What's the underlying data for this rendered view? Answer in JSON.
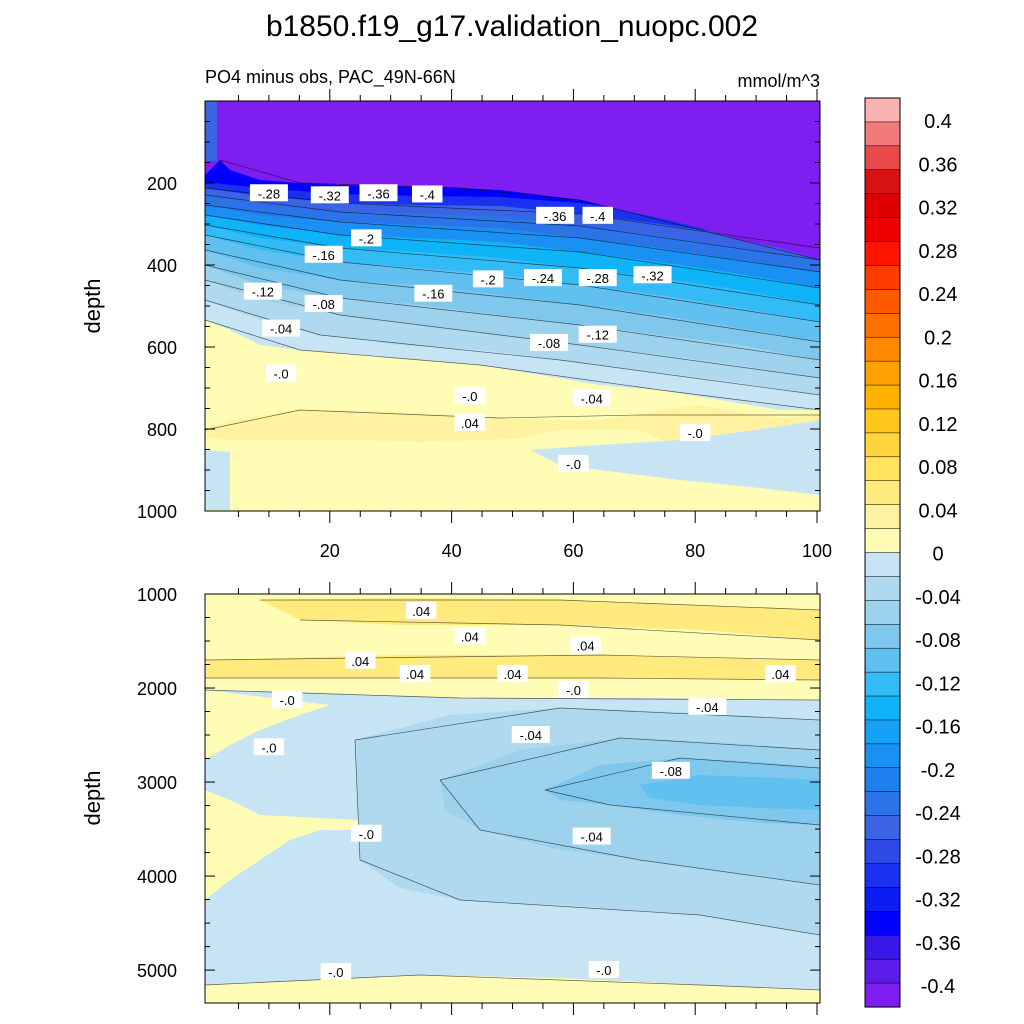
{
  "title": "b1850.f19_g17.validation_nuopc.002",
  "colorbar": {
    "levels": [
      "0.4",
      "0.36",
      "0.32",
      "0.28",
      "0.24",
      "0.2",
      "0.16",
      "0.12",
      "0.08",
      "0.04",
      "0",
      "-0.04",
      "-0.08",
      "-0.12",
      "-0.16",
      "-0.2",
      "-0.24",
      "-0.28",
      "-0.32",
      "-0.36",
      "-0.4"
    ],
    "colors": [
      "#f9b3b3",
      "#f07a7a",
      "#e84a4a",
      "#d81313",
      "#e00000",
      "#ee0000",
      "#ff1400",
      "#ff3c00",
      "#ff5a00",
      "#ff7000",
      "#ff8a00",
      "#ffa000",
      "#ffb200",
      "#ffc61e",
      "#ffd43c",
      "#ffe25e",
      "#ffea7d",
      "#fff2a0",
      "#fffcb6",
      "#c6e4f4",
      "#afd9ef",
      "#9dd2ed",
      "#80c7ee",
      "#60c0f0",
      "#33bbf5",
      "#0fb3f7",
      "#15a2f5",
      "#1a90f2",
      "#1e80ee",
      "#2a74e8",
      "#3a64e4",
      "#2e4ae6",
      "#1a32f0",
      "#0b1cf5",
      "#0000ff",
      "#3a18e6",
      "#5a1ce8",
      "#7f1ef0"
    ]
  },
  "chart_data": [
    {
      "type": "heatmap",
      "title": "PO4 minus obs, PAC_49N-66N",
      "units": "mmol/m^3",
      "ylabel": "depth",
      "xlabel": "",
      "xlim": [
        0,
        100
      ],
      "ylim": [
        1000,
        0
      ],
      "x_ticks": [
        "20",
        "40",
        "60",
        "80",
        "100"
      ],
      "y_ticks": [
        "200",
        "400",
        "600",
        "800",
        "1000"
      ],
      "contour_labels": [
        {
          "text": "-.28",
          "x": 10,
          "y": 225
        },
        {
          "text": "-.32",
          "x": 20,
          "y": 230
        },
        {
          "text": "-.36",
          "x": 28,
          "y": 225
        },
        {
          "text": "-.4",
          "x": 36,
          "y": 228
        },
        {
          "text": "-.36",
          "x": 57,
          "y": 280
        },
        {
          "text": "-.4",
          "x": 64,
          "y": 280
        },
        {
          "text": "-.2",
          "x": 26,
          "y": 335
        },
        {
          "text": "-.16",
          "x": 19,
          "y": 375
        },
        {
          "text": "-.12",
          "x": 9,
          "y": 465
        },
        {
          "text": "-.08",
          "x": 19,
          "y": 495
        },
        {
          "text": "-.16",
          "x": 37,
          "y": 470
        },
        {
          "text": "-.2",
          "x": 46,
          "y": 435
        },
        {
          "text": "-.24",
          "x": 55,
          "y": 432
        },
        {
          "text": "-.28",
          "x": 64,
          "y": 432
        },
        {
          "text": "-.32",
          "x": 73,
          "y": 425
        },
        {
          "text": "-.04",
          "x": 12,
          "y": 555
        },
        {
          "text": "-.08",
          "x": 56,
          "y": 590
        },
        {
          "text": "-.12",
          "x": 64,
          "y": 570
        },
        {
          "text": "-.0",
          "x": 12,
          "y": 665
        },
        {
          "text": "-.0",
          "x": 43,
          "y": 720
        },
        {
          "text": "-.04",
          "x": 63,
          "y": 725
        },
        {
          "text": ".04",
          "x": 43,
          "y": 785
        },
        {
          "text": "-.0",
          "x": 80,
          "y": 810
        },
        {
          "text": "-.0",
          "x": 60,
          "y": 885
        }
      ]
    },
    {
      "type": "heatmap",
      "ylabel": "depth",
      "xlabel": "",
      "xlim": [
        0,
        100
      ],
      "ylim": [
        5350,
        1000
      ],
      "y_ticks": [
        "1000",
        "2000",
        "3000",
        "4000",
        "5000"
      ],
      "contour_labels": [
        {
          "text": ".04",
          "x": 35,
          "y": 1180
        },
        {
          "text": ".04",
          "x": 43,
          "y": 1450
        },
        {
          "text": ".04",
          "x": 62,
          "y": 1550
        },
        {
          "text": ".04",
          "x": 25,
          "y": 1710
        },
        {
          "text": ".04",
          "x": 34,
          "y": 1850
        },
        {
          "text": ".04",
          "x": 50,
          "y": 1850
        },
        {
          "text": ".04",
          "x": 94,
          "y": 1850
        },
        {
          "text": "-.0",
          "x": 60,
          "y": 2020
        },
        {
          "text": "-.0",
          "x": 13,
          "y": 2130
        },
        {
          "text": "-.04",
          "x": 82,
          "y": 2200
        },
        {
          "text": "-.04",
          "x": 53,
          "y": 2500
        },
        {
          "text": "-.0",
          "x": 10,
          "y": 2630
        },
        {
          "text": "-.08",
          "x": 76,
          "y": 2880
        },
        {
          "text": "-.0",
          "x": 26,
          "y": 3550
        },
        {
          "text": "-.04",
          "x": 63,
          "y": 3580
        },
        {
          "text": "-.0",
          "x": 21,
          "y": 5020
        },
        {
          "text": "-.0",
          "x": 65,
          "y": 5000
        }
      ]
    }
  ]
}
